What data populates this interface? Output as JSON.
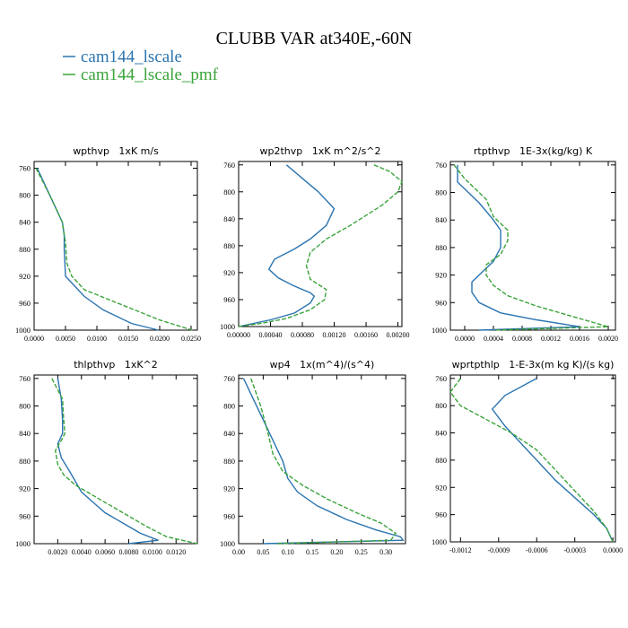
{
  "title": "CLUBB VAR at340E,-60N",
  "legend": {
    "placement": "top-left",
    "entries": [
      {
        "label": "cam144_lscale",
        "color": "#2a74b0"
      },
      {
        "label": "cam144_lscale_pmf",
        "color": "#3aa33a"
      }
    ]
  },
  "chart_data": [
    {
      "type": "line",
      "title": "wpthvp   1xK m/s",
      "ylim": [
        1000,
        750
      ],
      "yticks": [
        760,
        800,
        840,
        880,
        920,
        960,
        1000
      ],
      "xlim": [
        0.0,
        0.026
      ],
      "xticks": [
        0.0,
        0.005,
        0.01,
        0.015,
        0.02,
        0.025
      ],
      "xtick_labels": [
        "0.0000",
        "0.0050",
        "0.0100",
        "0.0150",
        "0.0200",
        "0.0250"
      ],
      "series": [
        {
          "name": "cam144_lscale",
          "x": [
            0.0005,
            0.0025,
            0.0045,
            0.0048,
            0.0048,
            0.005,
            0.006,
            0.008,
            0.011,
            0.0155,
            0.0198
          ],
          "y": [
            760,
            800,
            840,
            860,
            880,
            920,
            930,
            950,
            970,
            990,
            1000
          ]
        },
        {
          "name": "cam144_lscale_pmf",
          "x": [
            0.0003,
            0.0025,
            0.0045,
            0.005,
            0.0052,
            0.006,
            0.008,
            0.012,
            0.016,
            0.02,
            0.0252
          ],
          "y": [
            760,
            800,
            840,
            870,
            900,
            920,
            940,
            955,
            970,
            985,
            1000
          ]
        }
      ]
    },
    {
      "type": "line",
      "title": "wp2thvp   1xK m^2/s^2",
      "ylim": [
        1000,
        755
      ],
      "yticks": [
        760,
        800,
        840,
        880,
        920,
        960,
        1000
      ],
      "xlim": [
        0.0,
        0.00205
      ],
      "xticks": [
        0.0,
        0.0004,
        0.0008,
        0.0012,
        0.0016,
        0.002
      ],
      "xtick_labels": [
        "0.00000",
        "0.00040",
        "0.00080",
        "0.00120",
        "0.00160",
        "0.00200"
      ],
      "series": [
        {
          "name": "cam144_lscale",
          "x": [
            0.0006,
            0.0008,
            0.001,
            0.0012,
            0.0011,
            0.0009,
            0.0007,
            0.00045,
            0.00038,
            0.0005,
            0.0007,
            0.0009,
            0.00095,
            0.0009,
            0.0007,
            0.0004,
            0.0
          ],
          "y": [
            760,
            780,
            800,
            825,
            850,
            870,
            885,
            900,
            915,
            928,
            940,
            950,
            955,
            965,
            980,
            990,
            1000
          ]
        },
        {
          "name": "cam144_lscale_pmf",
          "x": [
            0.0017,
            0.0019,
            0.00205,
            0.002,
            0.0018,
            0.0014,
            0.0011,
            0.0009,
            0.00085,
            0.0009,
            0.0011,
            0.00108,
            0.0009,
            0.0006,
            0.0003,
            0.0
          ],
          "y": [
            760,
            770,
            785,
            800,
            820,
            850,
            870,
            890,
            910,
            930,
            945,
            960,
            975,
            988,
            995,
            1000
          ]
        }
      ]
    },
    {
      "type": "line",
      "title": "rtpthvp   1E-3x(kg/kg) K",
      "ylim": [
        1000,
        755
      ],
      "yticks": [
        760,
        800,
        840,
        880,
        920,
        960,
        1000
      ],
      "xlim": [
        -0.0002,
        0.0021
      ],
      "xticks": [
        0.0,
        0.0004,
        0.0008,
        0.0012,
        0.0016,
        0.002
      ],
      "xtick_labels": [
        "0.0000",
        "0.0004",
        "0.0008",
        "0.0012",
        "0.0016",
        "0.0020"
      ],
      "series": [
        {
          "name": "cam144_lscale",
          "x": [
            -0.0001,
            -0.0001,
            0.0002,
            0.0004,
            0.0005,
            0.0005,
            0.0004,
            0.0002,
            0.0001,
            0.0001,
            0.0002,
            0.0005,
            0.001,
            0.0016,
            0.0002
          ],
          "y": [
            760,
            785,
            815,
            840,
            855,
            880,
            900,
            920,
            930,
            945,
            960,
            975,
            985,
            995,
            1000
          ]
        },
        {
          "name": "cam144_lscale_pmf",
          "x": [
            -0.00015,
            0.0,
            0.0003,
            0.0004,
            0.0006,
            0.0006,
            0.0005,
            0.0003,
            0.0003,
            0.0004,
            0.0006,
            0.001,
            0.0015,
            0.002,
            0.0004
          ],
          "y": [
            760,
            780,
            810,
            835,
            855,
            870,
            890,
            905,
            920,
            935,
            950,
            965,
            980,
            995,
            1000
          ]
        }
      ]
    },
    {
      "type": "line",
      "title": "thlpthvp   1xK^2",
      "ylim": [
        1000,
        755
      ],
      "yticks": [
        760,
        800,
        840,
        880,
        920,
        960,
        1000
      ],
      "xlim": [
        0.0,
        0.0138
      ],
      "xticks": [
        0.002,
        0.004,
        0.006,
        0.008,
        0.01,
        0.012
      ],
      "xtick_labels": [
        "0.0020",
        "0.0040",
        "0.0060",
        "0.0080",
        "0.0100",
        "0.0120"
      ],
      "series": [
        {
          "name": "cam144_lscale",
          "x": [
            0.002,
            0.0023,
            0.0024,
            0.0024,
            0.002,
            0.0023,
            0.003,
            0.0035,
            0.004,
            0.005,
            0.006,
            0.0075,
            0.009,
            0.0105,
            0.008
          ],
          "y": [
            760,
            790,
            820,
            840,
            855,
            875,
            895,
            910,
            925,
            940,
            955,
            970,
            985,
            995,
            1000
          ]
        },
        {
          "name": "cam144_lscale_pmf",
          "x": [
            0.0015,
            0.0024,
            0.0025,
            0.0026,
            0.0023,
            0.0018,
            0.002,
            0.0025,
            0.0035,
            0.005,
            0.0065,
            0.008,
            0.0095,
            0.0112,
            0.0138
          ],
          "y": [
            760,
            790,
            820,
            840,
            850,
            865,
            885,
            900,
            915,
            930,
            945,
            960,
            975,
            990,
            1000
          ]
        }
      ]
    },
    {
      "type": "line",
      "title": "wp4   1x(m^4)/(s^4)",
      "ylim": [
        1000,
        755
      ],
      "yticks": [
        760,
        800,
        840,
        880,
        920,
        960,
        1000
      ],
      "xlim": [
        0.0,
        0.34
      ],
      "xticks": [
        0.0,
        0.05,
        0.1,
        0.15,
        0.2,
        0.25,
        0.3
      ],
      "xtick_labels": [
        "0.00",
        "0.05",
        "0.10",
        "0.15",
        "0.20",
        "0.25",
        "0.30"
      ],
      "series": [
        {
          "name": "cam144_lscale",
          "x": [
            0.01,
            0.03,
            0.05,
            0.07,
            0.09,
            0.1,
            0.12,
            0.16,
            0.22,
            0.28,
            0.33,
            0.335,
            0.05
          ],
          "y": [
            760,
            790,
            820,
            850,
            880,
            905,
            925,
            945,
            965,
            980,
            990,
            995,
            1000
          ]
        },
        {
          "name": "cam144_lscale_pmf",
          "x": [
            0.025,
            0.045,
            0.06,
            0.07,
            0.09,
            0.13,
            0.18,
            0.24,
            0.29,
            0.32,
            0.31,
            0.08
          ],
          "y": [
            760,
            800,
            840,
            870,
            895,
            915,
            935,
            955,
            970,
            985,
            995,
            1000
          ]
        }
      ]
    },
    {
      "type": "line",
      "title": "wprtpthlp   1-E-3x(m kg K)/(s kg)",
      "ylim": [
        1000,
        755
      ],
      "yticks": [
        760,
        800,
        840,
        880,
        920,
        960,
        1000
      ],
      "xlim": [
        -0.00128,
        2e-05
      ],
      "xticks": [
        -0.0012,
        -0.0009,
        -0.0006,
        -0.0003,
        0.0
      ],
      "xtick_labels": [
        "-0.0012",
        "-0.0009",
        "-0.0006",
        "-0.0003",
        "0.0000"
      ],
      "series": [
        {
          "name": "cam144_lscale",
          "x": [
            -0.0006,
            -0.00085,
            -0.00095,
            -0.00085,
            -0.00075,
            -0.0006,
            -0.00045,
            -0.0003,
            -0.00015,
            -5e-05,
            0.0
          ],
          "y": [
            760,
            785,
            805,
            830,
            850,
            880,
            910,
            935,
            960,
            980,
            1000
          ]
        },
        {
          "name": "cam144_lscale_pmf",
          "x": [
            -0.0012,
            -0.00128,
            -0.0012,
            -0.001,
            -0.0008,
            -0.0006,
            -0.00045,
            -0.0003,
            -0.00015,
            -5e-05,
            0.0
          ],
          "y": [
            760,
            780,
            800,
            820,
            840,
            865,
            895,
            925,
            955,
            980,
            1000
          ]
        }
      ]
    }
  ]
}
